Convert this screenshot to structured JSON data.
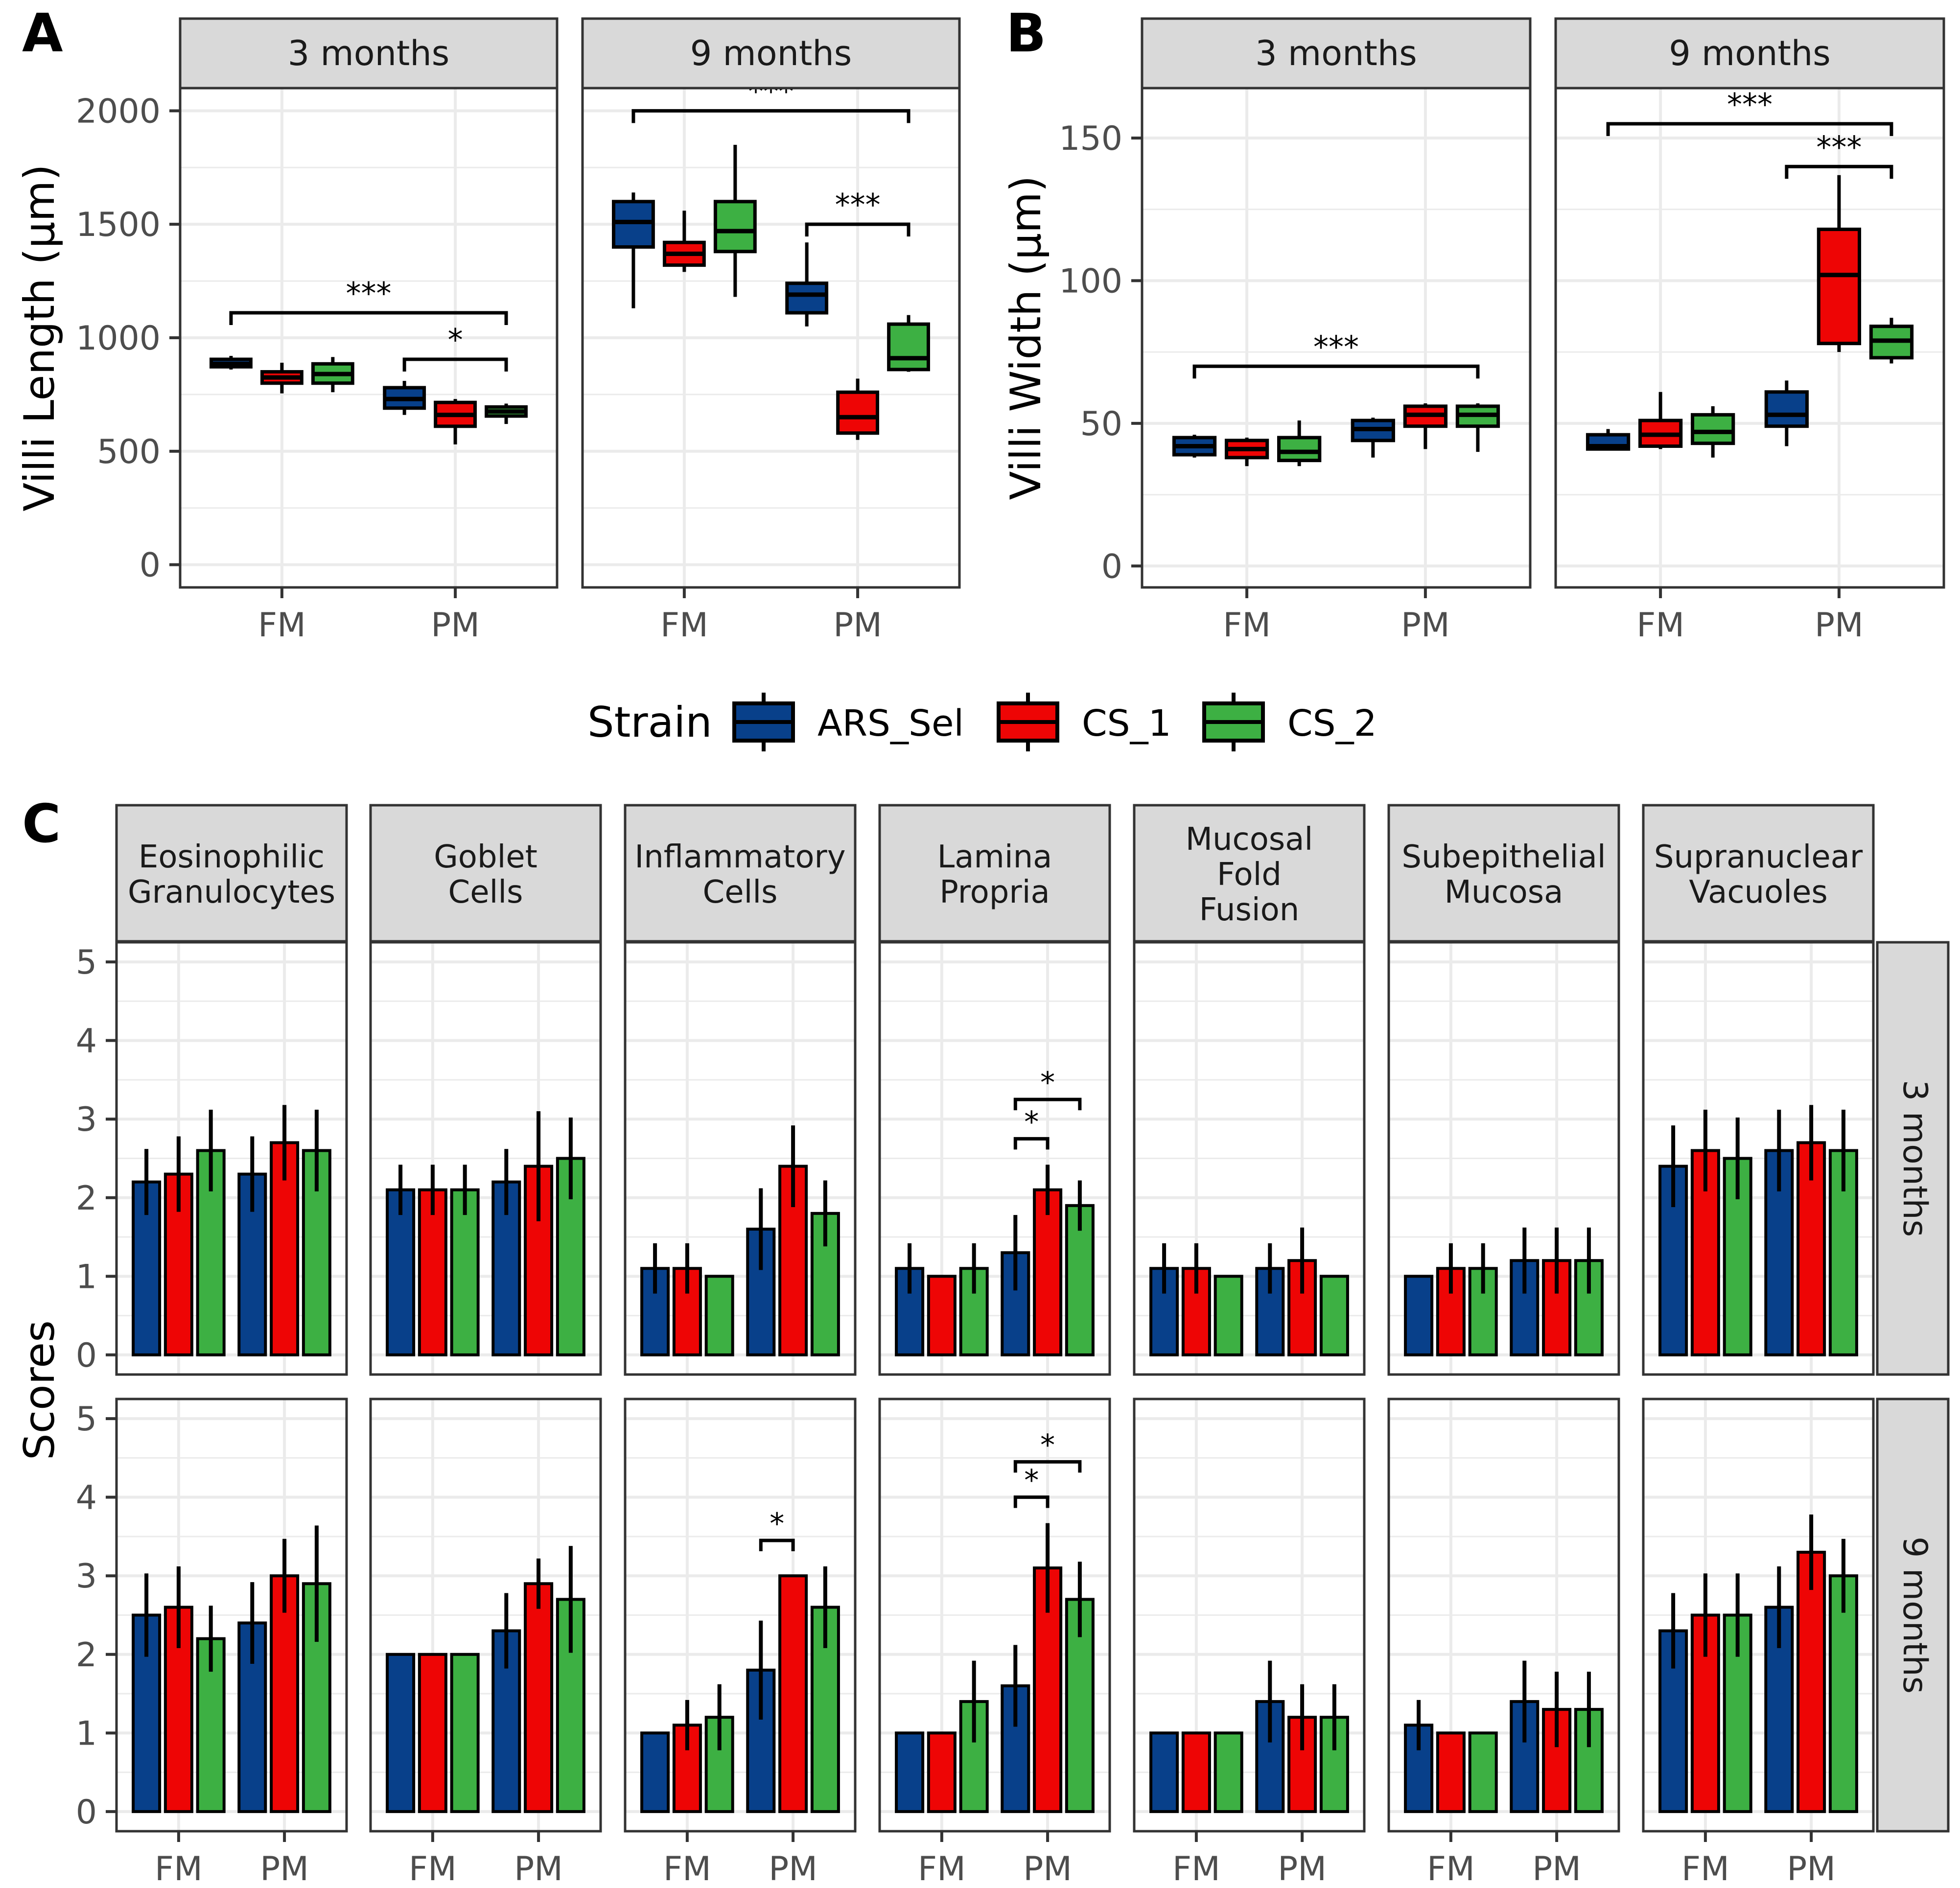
{
  "colors": {
    "ARS_Sel": "#08408A",
    "CS_1": "#EE0505",
    "CS_2": "#3DB043",
    "strip_bg": "#D9D9D9",
    "grid": "#EBEBEB",
    "panel_border": "#333333"
  },
  "legend": {
    "title": "Strain",
    "items": [
      "ARS_Sel",
      "CS_1",
      "CS_2"
    ]
  },
  "chart_data": [
    {
      "panel": "A",
      "type": "box",
      "ylabel": "Villi Length (µm)",
      "ylim": [
        -100,
        2100
      ],
      "yticks": [
        0,
        500,
        1000,
        1500,
        2000
      ],
      "categories": [
        "FM",
        "PM"
      ],
      "series_names": [
        "ARS_Sel",
        "CS_1",
        "CS_2"
      ],
      "facets": [
        {
          "title": "3 months",
          "boxes": [
            {
              "cat": "FM",
              "strain": "ARS_Sel",
              "min": 860,
              "q1": 872,
              "med": 885,
              "q3": 905,
              "max": 920
            },
            {
              "cat": "FM",
              "strain": "CS_1",
              "min": 755,
              "q1": 800,
              "med": 825,
              "q3": 850,
              "max": 890
            },
            {
              "cat": "FM",
              "strain": "CS_2",
              "min": 760,
              "q1": 800,
              "med": 840,
              "q3": 885,
              "max": 915
            },
            {
              "cat": "PM",
              "strain": "ARS_Sel",
              "min": 660,
              "q1": 690,
              "med": 730,
              "q3": 780,
              "max": 810
            },
            {
              "cat": "PM",
              "strain": "CS_1",
              "min": 530,
              "q1": 610,
              "med": 660,
              "q3": 715,
              "max": 730
            },
            {
              "cat": "PM",
              "strain": "CS_2",
              "min": 620,
              "q1": 655,
              "med": 675,
              "q3": 695,
              "max": 710
            }
          ],
          "sig": [
            {
              "label": "***",
              "from": [
                0,
                0
              ],
              "to": [
                1,
                2
              ],
              "y": 1110
            },
            {
              "label": "*",
              "from": [
                1,
                0
              ],
              "to": [
                1,
                2
              ],
              "y": 905
            }
          ]
        },
        {
          "title": "9 months",
          "boxes": [
            {
              "cat": "FM",
              "strain": "ARS_Sel",
              "min": 1130,
              "q1": 1400,
              "med": 1510,
              "q3": 1600,
              "max": 1640
            },
            {
              "cat": "FM",
              "strain": "CS_1",
              "min": 1290,
              "q1": 1320,
              "med": 1370,
              "q3": 1420,
              "max": 1560
            },
            {
              "cat": "FM",
              "strain": "CS_2",
              "min": 1180,
              "q1": 1380,
              "med": 1470,
              "q3": 1600,
              "max": 1850
            },
            {
              "cat": "PM",
              "strain": "ARS_Sel",
              "min": 1050,
              "q1": 1110,
              "med": 1190,
              "q3": 1240,
              "max": 1420
            },
            {
              "cat": "PM",
              "strain": "CS_1",
              "min": 550,
              "q1": 580,
              "med": 650,
              "q3": 760,
              "max": 820
            },
            {
              "cat": "PM",
              "strain": "CS_2",
              "min": 850,
              "q1": 860,
              "med": 910,
              "q3": 1060,
              "max": 1100
            }
          ],
          "sig": [
            {
              "label": "***",
              "from": [
                0,
                0
              ],
              "to": [
                1,
                2
              ],
              "y": 2000
            },
            {
              "label": "***",
              "from": [
                1,
                0
              ],
              "to": [
                1,
                2
              ],
              "y": 1500
            }
          ]
        }
      ]
    },
    {
      "panel": "B",
      "type": "box",
      "ylabel": "Villi Width (µm)",
      "ylim": [
        -7.5,
        167.5
      ],
      "yticks": [
        0,
        50,
        100,
        150
      ],
      "categories": [
        "FM",
        "PM"
      ],
      "series_names": [
        "ARS_Sel",
        "CS_1",
        "CS_2"
      ],
      "facets": [
        {
          "title": "3 months",
          "boxes": [
            {
              "cat": "FM",
              "strain": "ARS_Sel",
              "min": 38,
              "q1": 39,
              "med": 42,
              "q3": 45,
              "max": 46
            },
            {
              "cat": "FM",
              "strain": "CS_1",
              "min": 35,
              "q1": 38,
              "med": 41,
              "q3": 44,
              "max": 45
            },
            {
              "cat": "FM",
              "strain": "CS_2",
              "min": 35,
              "q1": 37,
              "med": 40,
              "q3": 45,
              "max": 51
            },
            {
              "cat": "PM",
              "strain": "ARS_Sel",
              "min": 38,
              "q1": 44,
              "med": 48,
              "q3": 51,
              "max": 52
            },
            {
              "cat": "PM",
              "strain": "CS_1",
              "min": 41,
              "q1": 49,
              "med": 53,
              "q3": 56,
              "max": 57
            },
            {
              "cat": "PM",
              "strain": "CS_2",
              "min": 40,
              "q1": 49,
              "med": 53,
              "q3": 56,
              "max": 57
            }
          ],
          "sig": [
            {
              "label": "***",
              "from": [
                0,
                0
              ],
              "to": [
                1,
                2
              ],
              "y": 70
            }
          ]
        },
        {
          "title": "9 months",
          "boxes": [
            {
              "cat": "FM",
              "strain": "ARS_Sel",
              "min": 41,
              "q1": 41,
              "med": 42,
              "q3": 46,
              "max": 48
            },
            {
              "cat": "FM",
              "strain": "CS_1",
              "min": 41,
              "q1": 42,
              "med": 46,
              "q3": 51,
              "max": 61
            },
            {
              "cat": "FM",
              "strain": "CS_2",
              "min": 38,
              "q1": 43,
              "med": 47,
              "q3": 53,
              "max": 56
            },
            {
              "cat": "PM",
              "strain": "ARS_Sel",
              "min": 42,
              "q1": 49,
              "med": 53,
              "q3": 61,
              "max": 65
            },
            {
              "cat": "PM",
              "strain": "CS_1",
              "min": 75,
              "q1": 78,
              "med": 102,
              "q3": 118,
              "max": 137
            },
            {
              "cat": "PM",
              "strain": "CS_2",
              "min": 71,
              "q1": 73,
              "med": 79,
              "q3": 84,
              "max": 87
            }
          ],
          "sig": [
            {
              "label": "***",
              "from": [
                0,
                0
              ],
              "to": [
                1,
                2
              ],
              "y": 155
            },
            {
              "label": "***",
              "from": [
                1,
                0
              ],
              "to": [
                1,
                2
              ],
              "y": 140
            }
          ]
        }
      ]
    },
    {
      "panel": "C",
      "type": "bar",
      "ylabel": "Scores",
      "ylim": [
        -0.25,
        5.25
      ],
      "yticks": [
        0,
        1,
        2,
        3,
        4,
        5
      ],
      "categories": [
        "FM",
        "PM"
      ],
      "series_names": [
        "ARS_Sel",
        "CS_1",
        "CS_2"
      ],
      "rows": [
        "3 months",
        "9 months"
      ],
      "columns": [
        {
          "title": [
            "Eosinophilic",
            "Granulocytes"
          ]
        },
        {
          "title": [
            "Goblet",
            "Cells"
          ]
        },
        {
          "title": [
            "Inflammatory",
            "Cells"
          ]
        },
        {
          "title": [
            "Lamina",
            "Propria"
          ]
        },
        {
          "title": [
            "Mucosal",
            "Fold",
            "Fusion"
          ]
        },
        {
          "title": [
            "Subepithelial",
            "Mucosa"
          ]
        },
        {
          "title": [
            "Supranuclear",
            "Vacuoles"
          ]
        }
      ],
      "cells": [
        [
          {
            "values": [
              [
                2.2,
                2.3,
                2.6
              ],
              [
                2.3,
                2.7,
                2.6
              ]
            ],
            "errors": [
              [
                0.42,
                0.48,
                0.52
              ],
              [
                0.48,
                0.48,
                0.52
              ]
            ],
            "sig": []
          },
          {
            "values": [
              [
                2.1,
                2.1,
                2.1
              ],
              [
                2.2,
                2.4,
                2.5
              ]
            ],
            "errors": [
              [
                0.32,
                0.32,
                0.32
              ],
              [
                0.42,
                0.7,
                0.52
              ]
            ],
            "sig": []
          },
          {
            "values": [
              [
                1.1,
                1.1,
                1.0
              ],
              [
                1.6,
                2.4,
                1.8
              ]
            ],
            "errors": [
              [
                0.32,
                0.32,
                0
              ],
              [
                0.52,
                0.52,
                0.42
              ]
            ],
            "sig": []
          },
          {
            "values": [
              [
                1.1,
                1.0,
                1.1
              ],
              [
                1.3,
                2.1,
                1.9
              ]
            ],
            "errors": [
              [
                0.32,
                0,
                0.32
              ],
              [
                0.48,
                0.32,
                0.32
              ]
            ],
            "sig": [
              {
                "label": "*",
                "from": [
                  1,
                  0
                ],
                "to": [
                  1,
                  1
                ],
                "y": 2.75
              },
              {
                "label": "*",
                "from": [
                  1,
                  0
                ],
                "to": [
                  1,
                  2
                ],
                "y": 3.25
              }
            ]
          },
          {
            "values": [
              [
                1.1,
                1.1,
                1.0
              ],
              [
                1.1,
                1.2,
                1.0
              ]
            ],
            "errors": [
              [
                0.32,
                0.32,
                0
              ],
              [
                0.32,
                0.42,
                0
              ]
            ],
            "sig": []
          },
          {
            "values": [
              [
                1.0,
                1.1,
                1.1
              ],
              [
                1.2,
                1.2,
                1.2
              ]
            ],
            "errors": [
              [
                0,
                0.32,
                0.32
              ],
              [
                0.42,
                0.42,
                0.42
              ]
            ],
            "sig": []
          },
          {
            "values": [
              [
                2.4,
                2.6,
                2.5
              ],
              [
                2.6,
                2.7,
                2.6
              ]
            ],
            "errors": [
              [
                0.52,
                0.52,
                0.52
              ],
              [
                0.52,
                0.48,
                0.52
              ]
            ],
            "sig": []
          }
        ],
        [
          {
            "values": [
              [
                2.5,
                2.6,
                2.2
              ],
              [
                2.4,
                3.0,
                2.9
              ]
            ],
            "errors": [
              [
                0.53,
                0.52,
                0.42
              ],
              [
                0.52,
                0.47,
                0.74
              ]
            ],
            "sig": []
          },
          {
            "values": [
              [
                2.0,
                2.0,
                2.0
              ],
              [
                2.3,
                2.9,
                2.7
              ]
            ],
            "errors": [
              [
                0,
                0,
                0
              ],
              [
                0.48,
                0.32,
                0.68
              ]
            ],
            "sig": []
          },
          {
            "values": [
              [
                1.0,
                1.1,
                1.2
              ],
              [
                1.8,
                3.0,
                2.6
              ]
            ],
            "errors": [
              [
                0,
                0.32,
                0.42
              ],
              [
                0.63,
                0,
                0.52
              ]
            ],
            "sig": [
              {
                "label": "*",
                "from": [
                  1,
                  0
                ],
                "to": [
                  1,
                  1
                ],
                "y": 3.45
              }
            ]
          },
          {
            "values": [
              [
                1.0,
                1.0,
                1.4
              ],
              [
                1.6,
                3.1,
                2.7
              ]
            ],
            "errors": [
              [
                0,
                0,
                0.52
              ],
              [
                0.52,
                0.57,
                0.48
              ]
            ],
            "sig": [
              {
                "label": "*",
                "from": [
                  1,
                  0
                ],
                "to": [
                  1,
                  1
                ],
                "y": 4.0
              },
              {
                "label": "*",
                "from": [
                  1,
                  0
                ],
                "to": [
                  1,
                  2
                ],
                "y": 4.45
              }
            ]
          },
          {
            "values": [
              [
                1.0,
                1.0,
                1.0
              ],
              [
                1.4,
                1.2,
                1.2
              ]
            ],
            "errors": [
              [
                0,
                0,
                0
              ],
              [
                0.52,
                0.42,
                0.42
              ]
            ],
            "sig": []
          },
          {
            "values": [
              [
                1.1,
                1.0,
                1.0
              ],
              [
                1.4,
                1.3,
                1.3
              ]
            ],
            "errors": [
              [
                0.32,
                0,
                0
              ],
              [
                0.52,
                0.48,
                0.48
              ]
            ],
            "sig": []
          },
          {
            "values": [
              [
                2.3,
                2.5,
                2.5
              ],
              [
                2.6,
                3.3,
                3.0
              ]
            ],
            "errors": [
              [
                0.48,
                0.53,
                0.53
              ],
              [
                0.52,
                0.48,
                0.47
              ]
            ],
            "sig": []
          }
        ]
      ]
    }
  ]
}
